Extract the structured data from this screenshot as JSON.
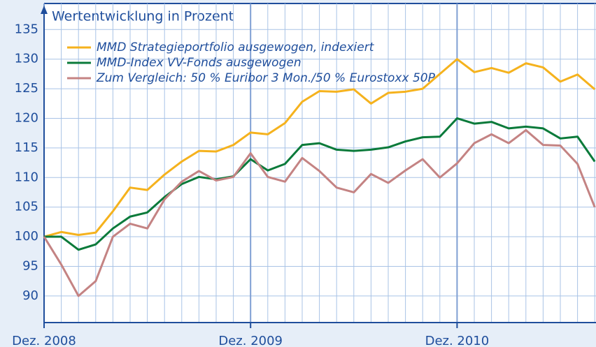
{
  "chart_data": {
    "type": "line",
    "title": "Wertentwicklung in Prozent",
    "categories": [
      "Dez. 2008",
      null,
      null,
      null,
      null,
      null,
      null,
      null,
      null,
      null,
      null,
      null,
      "Dez. 2009",
      null,
      null,
      null,
      null,
      null,
      null,
      null,
      null,
      null,
      null,
      null,
      "Dez. 2010",
      null,
      null,
      null,
      null,
      null,
      null,
      null,
      null
    ],
    "series": [
      {
        "name": "MMD Strategieportfolio ausgewogen, indexiert",
        "color": "#f5b21d",
        "values": [
          100,
          100.8,
          100.3,
          100.7,
          104.3,
          108.3,
          107.9,
          110.5,
          112.7,
          114.5,
          114.4,
          115.5,
          117.6,
          117.3,
          119.2,
          122.8,
          124.6,
          124.5,
          124.9,
          122.5,
          124.3,
          124.5,
          125,
          127.5,
          130,
          127.8,
          128.5,
          127.7,
          129.3,
          128.6,
          126.2,
          127.4,
          124.9
        ]
      },
      {
        "name": "MMD-Index VV-Fonds ausgewogen",
        "color": "#0a7a3a",
        "values": [
          100,
          100,
          97.8,
          98.7,
          101.4,
          103.4,
          104.1,
          106.7,
          108.9,
          110.1,
          109.7,
          110.2,
          113.1,
          111.2,
          112.3,
          115.5,
          115.8,
          114.7,
          114.5,
          114.7,
          115.1,
          116.1,
          116.8,
          116.9,
          120,
          119.1,
          119.4,
          118.3,
          118.6,
          118.3,
          116.6,
          116.9,
          112.7
        ]
      },
      {
        "name": "Zum Vergleich: 50 % Euribor 3 Mon./50 % Eurostoxx 50P",
        "color": "#c48383",
        "values": [
          100,
          95.3,
          90,
          92.5,
          100,
          102.2,
          101.4,
          106.3,
          109.3,
          111.1,
          109.5,
          110.1,
          114.1,
          110.1,
          109.3,
          113.3,
          111.1,
          108.3,
          107.5,
          110.6,
          109.1,
          111.2,
          113.1,
          110,
          112.4,
          115.8,
          117.3,
          115.8,
          118,
          115.5,
          115.4,
          112.3,
          105
        ]
      }
    ],
    "ylim": [
      85.5,
      139.4
    ],
    "yticks": [
      90,
      95,
      100,
      105,
      110,
      115,
      120,
      125,
      130,
      135
    ],
    "grid": true
  }
}
